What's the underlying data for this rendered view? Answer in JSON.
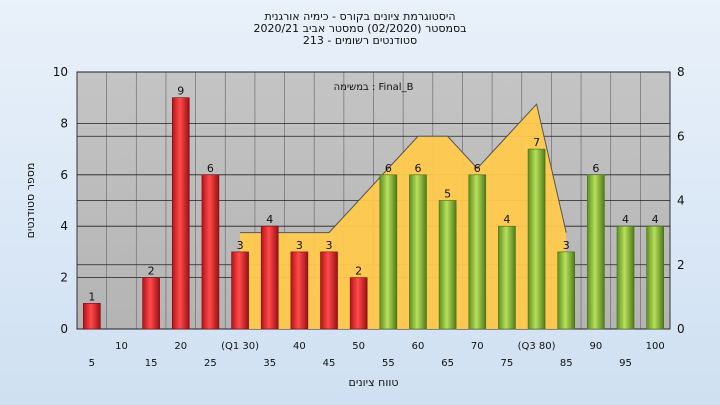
{
  "chart_data": {
    "type": "bar",
    "title_lines": [
      "היסטוגרמת ציונים בקורס - כימיה אורגנית",
      "בסמסטר  (02/2020)  סמסטר אביב 2020/21",
      "סטודנטים רשומים - 213"
    ],
    "filter_label": "במשימה : Final_B",
    "xlabel": "טווח ציונים",
    "ylabel": "מספר סטודנטים",
    "ylim": [
      0,
      10
    ],
    "yticks": [
      0,
      2,
      4,
      6,
      8,
      10
    ],
    "y2lim": [
      0,
      8
    ],
    "y2ticks": [
      0,
      2,
      4,
      6,
      8
    ],
    "grid": true,
    "categories": [
      "5",
      "10",
      "15",
      "20",
      "25",
      "30",
      "35",
      "40",
      "45",
      "50",
      "55",
      "60",
      "65",
      "70",
      "75",
      "80",
      "85",
      "90",
      "95",
      "100"
    ],
    "tick_labels": [
      "5",
      "10",
      "15",
      "20",
      "25",
      "(Q1 30)",
      "35",
      "40",
      "45",
      "50",
      "55",
      "60",
      "65",
      "70",
      "75",
      "(Q3 80)",
      "85",
      "90",
      "95",
      "100"
    ],
    "values": [
      1,
      0,
      2,
      9,
      6,
      3,
      4,
      3,
      3,
      2,
      6,
      6,
      5,
      6,
      4,
      7,
      3,
      6,
      4,
      4
    ],
    "bar_colors": {
      "below_pass": "#e8292b",
      "above_pass": "#8fbf3a"
    },
    "pass_from_category": "55",
    "secondary_series": {
      "type": "area",
      "x": [
        "30",
        "35",
        "40",
        "45",
        "50",
        "55",
        "60",
        "65",
        "70",
        "75",
        "80",
        "85"
      ],
      "values": [
        3,
        3,
        3,
        3,
        4,
        5,
        6,
        6,
        5,
        6,
        7,
        3
      ],
      "fill": "#ffc94d"
    }
  }
}
